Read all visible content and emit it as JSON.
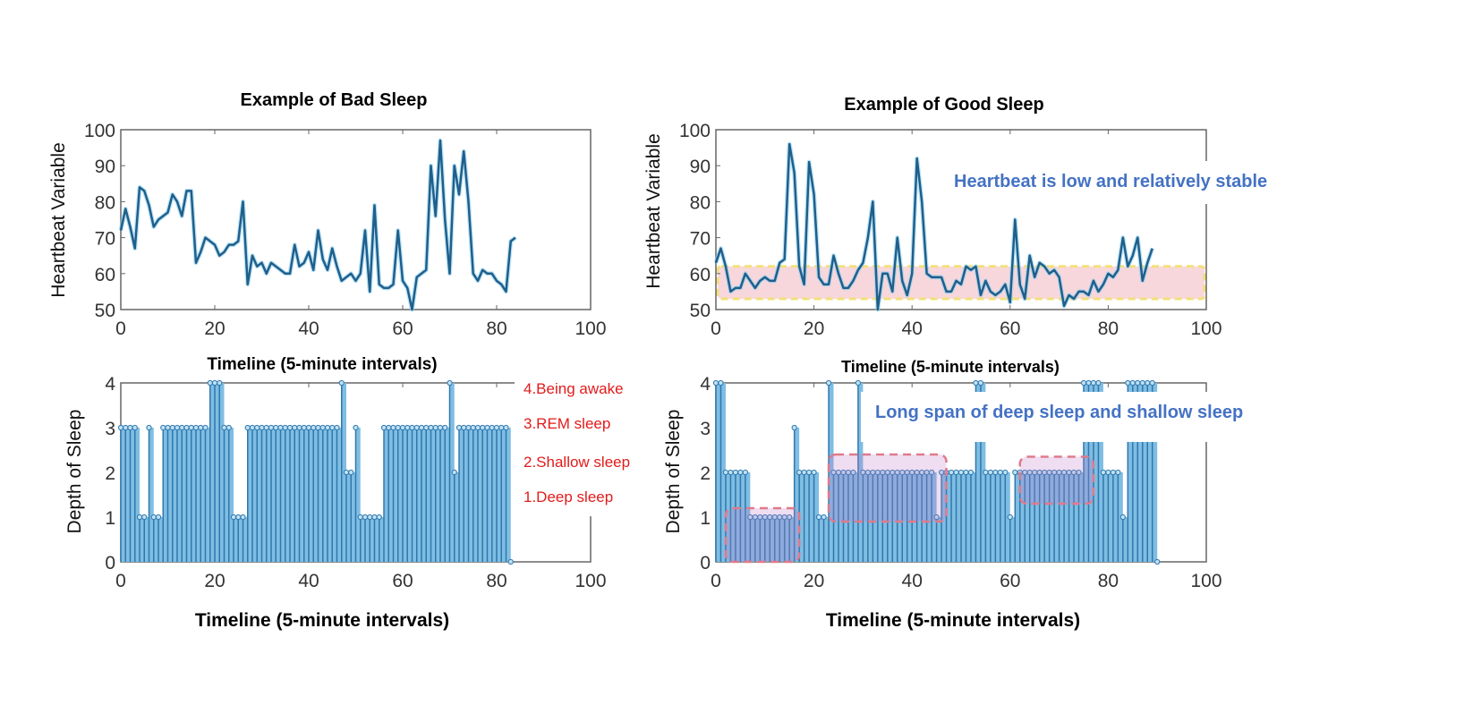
{
  "chart_data": [
    {
      "type": "line",
      "title": "Example of Bad Sleep",
      "xlabel": "Timeline (5-minute intervals)",
      "ylabel": "Heartbeat Variable",
      "xlim": [
        0,
        100
      ],
      "ylim": [
        50,
        100
      ],
      "xticks": [
        "0",
        "20",
        "40",
        "60",
        "80",
        "100"
      ],
      "yticks": [
        "50",
        "60",
        "70",
        "80",
        "90",
        "100"
      ],
      "line_color": "#1f5f8b",
      "y": [
        72,
        78,
        73,
        67,
        84,
        83,
        79,
        73,
        75,
        76,
        77,
        82,
        80,
        76,
        83,
        83,
        63,
        66,
        70,
        69,
        68,
        65,
        66,
        68,
        68,
        69,
        80,
        57,
        65,
        62,
        63,
        60,
        63,
        62,
        61,
        60,
        60,
        68,
        62,
        63,
        66,
        61,
        72,
        64,
        61,
        67,
        62,
        58,
        59,
        60,
        58,
        60,
        72,
        55,
        79,
        57,
        56,
        56,
        57,
        72,
        58,
        56,
        50,
        59,
        60,
        61,
        90,
        76,
        97,
        75,
        60,
        90,
        82,
        94,
        80,
        60,
        58,
        61,
        60,
        60,
        58,
        57,
        55,
        69,
        70
      ]
    },
    {
      "type": "line",
      "title": "Example of Good Sleep",
      "xlabel": "Timeline (5-minute intervals)",
      "ylabel": "Heartbeat Variable",
      "xlim": [
        0,
        100
      ],
      "ylim": [
        50,
        100
      ],
      "xticks": [
        "0",
        "20",
        "40",
        "60",
        "80",
        "100"
      ],
      "yticks": [
        "50",
        "60",
        "70",
        "80",
        "90",
        "100"
      ],
      "line_color": "#1f5f8b",
      "highlight_band": [
        53,
        62
      ],
      "annotation": "Heartbeat is low and relatively stable",
      "y": [
        63,
        67,
        62,
        55,
        56,
        56,
        60,
        58,
        56,
        58,
        59,
        58,
        58,
        63,
        64,
        96,
        88,
        62,
        57,
        91,
        82,
        59,
        57,
        57,
        65,
        60,
        56,
        56,
        58,
        61,
        63,
        70,
        80,
        50,
        60,
        60,
        55,
        70,
        58,
        54,
        60,
        92,
        80,
        60,
        59,
        59,
        59,
        55,
        55,
        58,
        57,
        62,
        61,
        62,
        54,
        58,
        55,
        54,
        55,
        57,
        52,
        75,
        57,
        53,
        65,
        59,
        63,
        62,
        60,
        61,
        59,
        51,
        54,
        53,
        55,
        55,
        54,
        58,
        55,
        57,
        60,
        59,
        61,
        70,
        62,
        65,
        70,
        58,
        63,
        67
      ]
    },
    {
      "type": "stem",
      "xlabel": "Timeline (5-minute intervals)",
      "ylabel": "Depth of Sleep",
      "xlim": [
        0,
        100
      ],
      "ylim": [
        0,
        4
      ],
      "xticks": [
        "0",
        "20",
        "40",
        "60",
        "80",
        "100"
      ],
      "yticks": [
        "0",
        "1",
        "2",
        "3",
        "4"
      ],
      "legend": [
        "4.Being awake",
        "3.REM sleep",
        "2.Shallow sleep",
        "1.Deep sleep"
      ],
      "legend_color": "#e21b1b",
      "y": [
        3,
        3,
        3,
        3,
        1,
        1,
        3,
        1,
        1,
        3,
        3,
        3,
        3,
        3,
        3,
        3,
        3,
        3,
        3,
        4,
        4,
        4,
        3,
        3,
        1,
        1,
        1,
        3,
        3,
        3,
        3,
        3,
        3,
        3,
        3,
        3,
        3,
        3,
        3,
        3,
        3,
        3,
        3,
        3,
        3,
        3,
        3,
        4,
        2,
        2,
        3,
        1,
        1,
        1,
        1,
        1,
        3,
        3,
        3,
        3,
        3,
        3,
        3,
        3,
        3,
        3,
        3,
        3,
        3,
        3,
        4,
        2,
        3,
        3,
        3,
        3,
        3,
        3,
        3,
        3,
        3,
        3,
        3,
        0
      ]
    },
    {
      "type": "stem",
      "xlabel": "Timeline (5-minute intervals)",
      "ylabel": "Depth of Sleep",
      "xlim": [
        0,
        100
      ],
      "ylim": [
        0,
        4
      ],
      "xticks": [
        "0",
        "20",
        "40",
        "60",
        "80",
        "100"
      ],
      "yticks": [
        "0",
        "1",
        "2",
        "3",
        "4"
      ],
      "annotation": "Long span of deep sleep and shallow sleep",
      "highlight_boxes": [
        [
          2,
          17,
          0,
          1.2
        ],
        [
          23,
          47,
          0.9,
          2.4
        ],
        [
          62,
          77,
          1.3,
          2.35
        ]
      ],
      "y": [
        4,
        4,
        2,
        2,
        2,
        2,
        2,
        1,
        1,
        1,
        1,
        1,
        1,
        1,
        1,
        1,
        3,
        2,
        2,
        2,
        2,
        1,
        1,
        4,
        2,
        2,
        2,
        2,
        2,
        4,
        2,
        2,
        2,
        2,
        2,
        2,
        2,
        2,
        2,
        2,
        2,
        2,
        2,
        2,
        2,
        1,
        2,
        2,
        2,
        2,
        2,
        2,
        2,
        4,
        4,
        2,
        2,
        2,
        2,
        2,
        1,
        2,
        2,
        2,
        2,
        2,
        2,
        2,
        2,
        2,
        2,
        2,
        2,
        2,
        2,
        4,
        4,
        4,
        4,
        2,
        2,
        2,
        2,
        1,
        4,
        4,
        4,
        4,
        4,
        4,
        0
      ]
    }
  ]
}
